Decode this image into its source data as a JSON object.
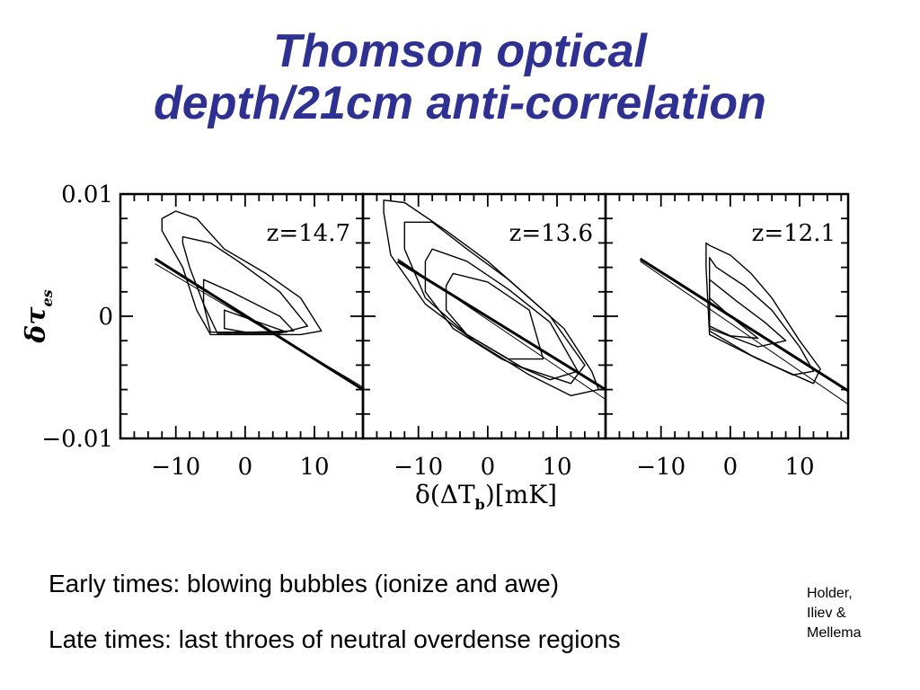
{
  "slide": {
    "title_line1": "Thomson optical",
    "title_line2": "depth/21cm anti-correlation",
    "bullets": [
      "Early times: blowing bubbles (ionize and awe)",
      "Late times: last throes of neutral overdense regions"
    ],
    "credit_lines": [
      "Holder,",
      "Iliev &",
      "Mellema"
    ],
    "title_color": "#2e3192"
  },
  "chart_data": {
    "type": "scatter",
    "description_kind": "three side-by-side contour panels with linear fits",
    "xlabel_parts": {
      "prefix": "δ(ΔT",
      "subscript": "b",
      "suffix": ")[mK]"
    },
    "ylabel_parts": {
      "main": "δτ",
      "subscript": "es"
    },
    "xlim": [
      -18,
      17
    ],
    "ylim": [
      -0.01,
      0.01
    ],
    "xticks": [
      -10,
      0,
      10
    ],
    "xtick_labels": [
      "−10",
      "0",
      "10"
    ],
    "yticks": [
      -0.01,
      0,
      0.01
    ],
    "ytick_labels": [
      "−0.01",
      "0",
      "0.01"
    ],
    "panels": [
      {
        "label": "z=14.7",
        "fit_thick": [
          [
            -13,
            0.0047
          ],
          [
            17,
            -0.006
          ]
        ],
        "fit_thin": [
          [
            -13,
            0.0043
          ],
          [
            17,
            -0.0058
          ]
        ],
        "contours": [
          [
            [
              -12,
              0.008
            ],
            [
              -10,
              0.0086
            ],
            [
              -7,
              0.008
            ],
            [
              -3,
              0.0055
            ],
            [
              3,
              0.0035
            ],
            [
              8,
              0.0015
            ],
            [
              11,
              -0.0012
            ],
            [
              8,
              -0.0015
            ],
            [
              -5,
              -0.0015
            ],
            [
              -7,
              0.0005
            ],
            [
              -9,
              0.004
            ],
            [
              -12,
              0.007
            ]
          ],
          [
            [
              -9,
              0.0065
            ],
            [
              -5,
              0.006
            ],
            [
              -1,
              0.0045
            ],
            [
              5,
              0.002
            ],
            [
              9,
              -0.0008
            ],
            [
              5,
              -0.0014
            ],
            [
              -4,
              -0.0014
            ],
            [
              -6,
              0.001
            ],
            [
              -8,
              0.004
            ],
            [
              -9,
              0.006
            ]
          ],
          [
            [
              -6,
              0.003
            ],
            [
              -2,
              0.002
            ],
            [
              5,
              0
            ],
            [
              7,
              -0.0012
            ],
            [
              1,
              -0.0013
            ],
            [
              -5,
              -0.0013
            ],
            [
              -6,
              0.001
            ],
            [
              -6,
              0.003
            ]
          ],
          [
            [
              -3,
              0.0005
            ],
            [
              3,
              -0.0007
            ],
            [
              6,
              -0.0013
            ],
            [
              0,
              -0.0013
            ],
            [
              -3,
              -0.001
            ],
            [
              -3,
              0.0005
            ]
          ]
        ]
      },
      {
        "label": "z=13.6",
        "fit_thick": [
          [
            -13,
            0.0045
          ],
          [
            17,
            -0.006
          ]
        ],
        "fit_thin": [
          [
            -13,
            0.0047
          ],
          [
            17,
            -0.0068
          ]
        ],
        "contours": [
          [
            [
              -15,
              0.0095
            ],
            [
              -12,
              0.0093
            ],
            [
              -6,
              0.007
            ],
            [
              0,
              0.0045
            ],
            [
              6,
              0.0015
            ],
            [
              11,
              -0.001
            ],
            [
              15,
              -0.0045
            ],
            [
              16,
              -0.006
            ],
            [
              12,
              -0.0065
            ],
            [
              6,
              -0.0048
            ],
            [
              -2,
              -0.002
            ],
            [
              -9,
              0.001
            ],
            [
              -14,
              0.005
            ],
            [
              -15,
              0.0085
            ]
          ],
          [
            [
              -12,
              0.0077
            ],
            [
              -8,
              0.0077
            ],
            [
              -3,
              0.0055
            ],
            [
              3,
              0.003
            ],
            [
              9,
              0
            ],
            [
              14,
              -0.004
            ],
            [
              12,
              -0.0055
            ],
            [
              5,
              -0.0042
            ],
            [
              -3,
              -0.0015
            ],
            [
              -9,
              0.0015
            ],
            [
              -12,
              0.0055
            ],
            [
              -12,
              0.0075
            ]
          ],
          [
            [
              -8,
              0.0055
            ],
            [
              -3,
              0.0045
            ],
            [
              3,
              0.0022
            ],
            [
              9,
              -0.0005
            ],
            [
              13,
              -0.0045
            ],
            [
              9,
              -0.0052
            ],
            [
              2,
              -0.0035
            ],
            [
              -5,
              -0.001
            ],
            [
              -9,
              0.002
            ],
            [
              -9,
              0.0045
            ],
            [
              -8,
              0.0055
            ]
          ],
          [
            [
              -5,
              0.0035
            ],
            [
              0,
              0.0028
            ],
            [
              6,
              0.0005
            ],
            [
              8,
              -0.0035
            ],
            [
              3,
              -0.0035
            ],
            [
              -3,
              -0.0015
            ],
            [
              -6,
              0.0005
            ],
            [
              -6,
              0.0025
            ],
            [
              -5,
              0.0035
            ]
          ]
        ]
      },
      {
        "label": "z=12.1",
        "fit_thick": [
          [
            -13,
            0.0047
          ],
          [
            17,
            -0.0061
          ]
        ],
        "fit_thin": [
          [
            -13,
            0.0045
          ],
          [
            17,
            -0.0072
          ]
        ],
        "contours": [
          [
            [
              -3.5,
              0.006
            ],
            [
              -3,
              0.0058
            ],
            [
              0,
              0.005
            ],
            [
              3,
              0.0035
            ],
            [
              6,
              0.0015
            ],
            [
              10,
              -0.002
            ],
            [
              13,
              -0.0043
            ],
            [
              12,
              -0.0055
            ],
            [
              8,
              -0.0045
            ],
            [
              4,
              -0.0035
            ],
            [
              -3,
              -0.0015
            ],
            [
              -3.5,
              0.004
            ]
          ],
          [
            [
              -3,
              0.0048
            ],
            [
              -2,
              0.004
            ],
            [
              2,
              0.0025
            ],
            [
              6,
              0.0005
            ],
            [
              10,
              -0.0025
            ],
            [
              12,
              -0.0045
            ],
            [
              9,
              -0.0048
            ],
            [
              3,
              -0.0032
            ],
            [
              -3,
              -0.0012
            ],
            [
              -3,
              0.0045
            ]
          ],
          [
            [
              -3,
              0.003
            ],
            [
              1,
              0.0012
            ],
            [
              5,
              -0.0005
            ],
            [
              8,
              -0.002
            ],
            [
              4,
              -0.0025
            ],
            [
              -3,
              -0.001
            ],
            [
              -3,
              0.003
            ]
          ],
          [
            [
              -3,
              0.0015
            ],
            [
              0,
              0
            ],
            [
              4,
              -0.0018
            ],
            [
              0,
              -0.0016
            ],
            [
              -3,
              -0.0008
            ],
            [
              -3,
              0.0015
            ]
          ]
        ]
      }
    ],
    "grid": false
  }
}
